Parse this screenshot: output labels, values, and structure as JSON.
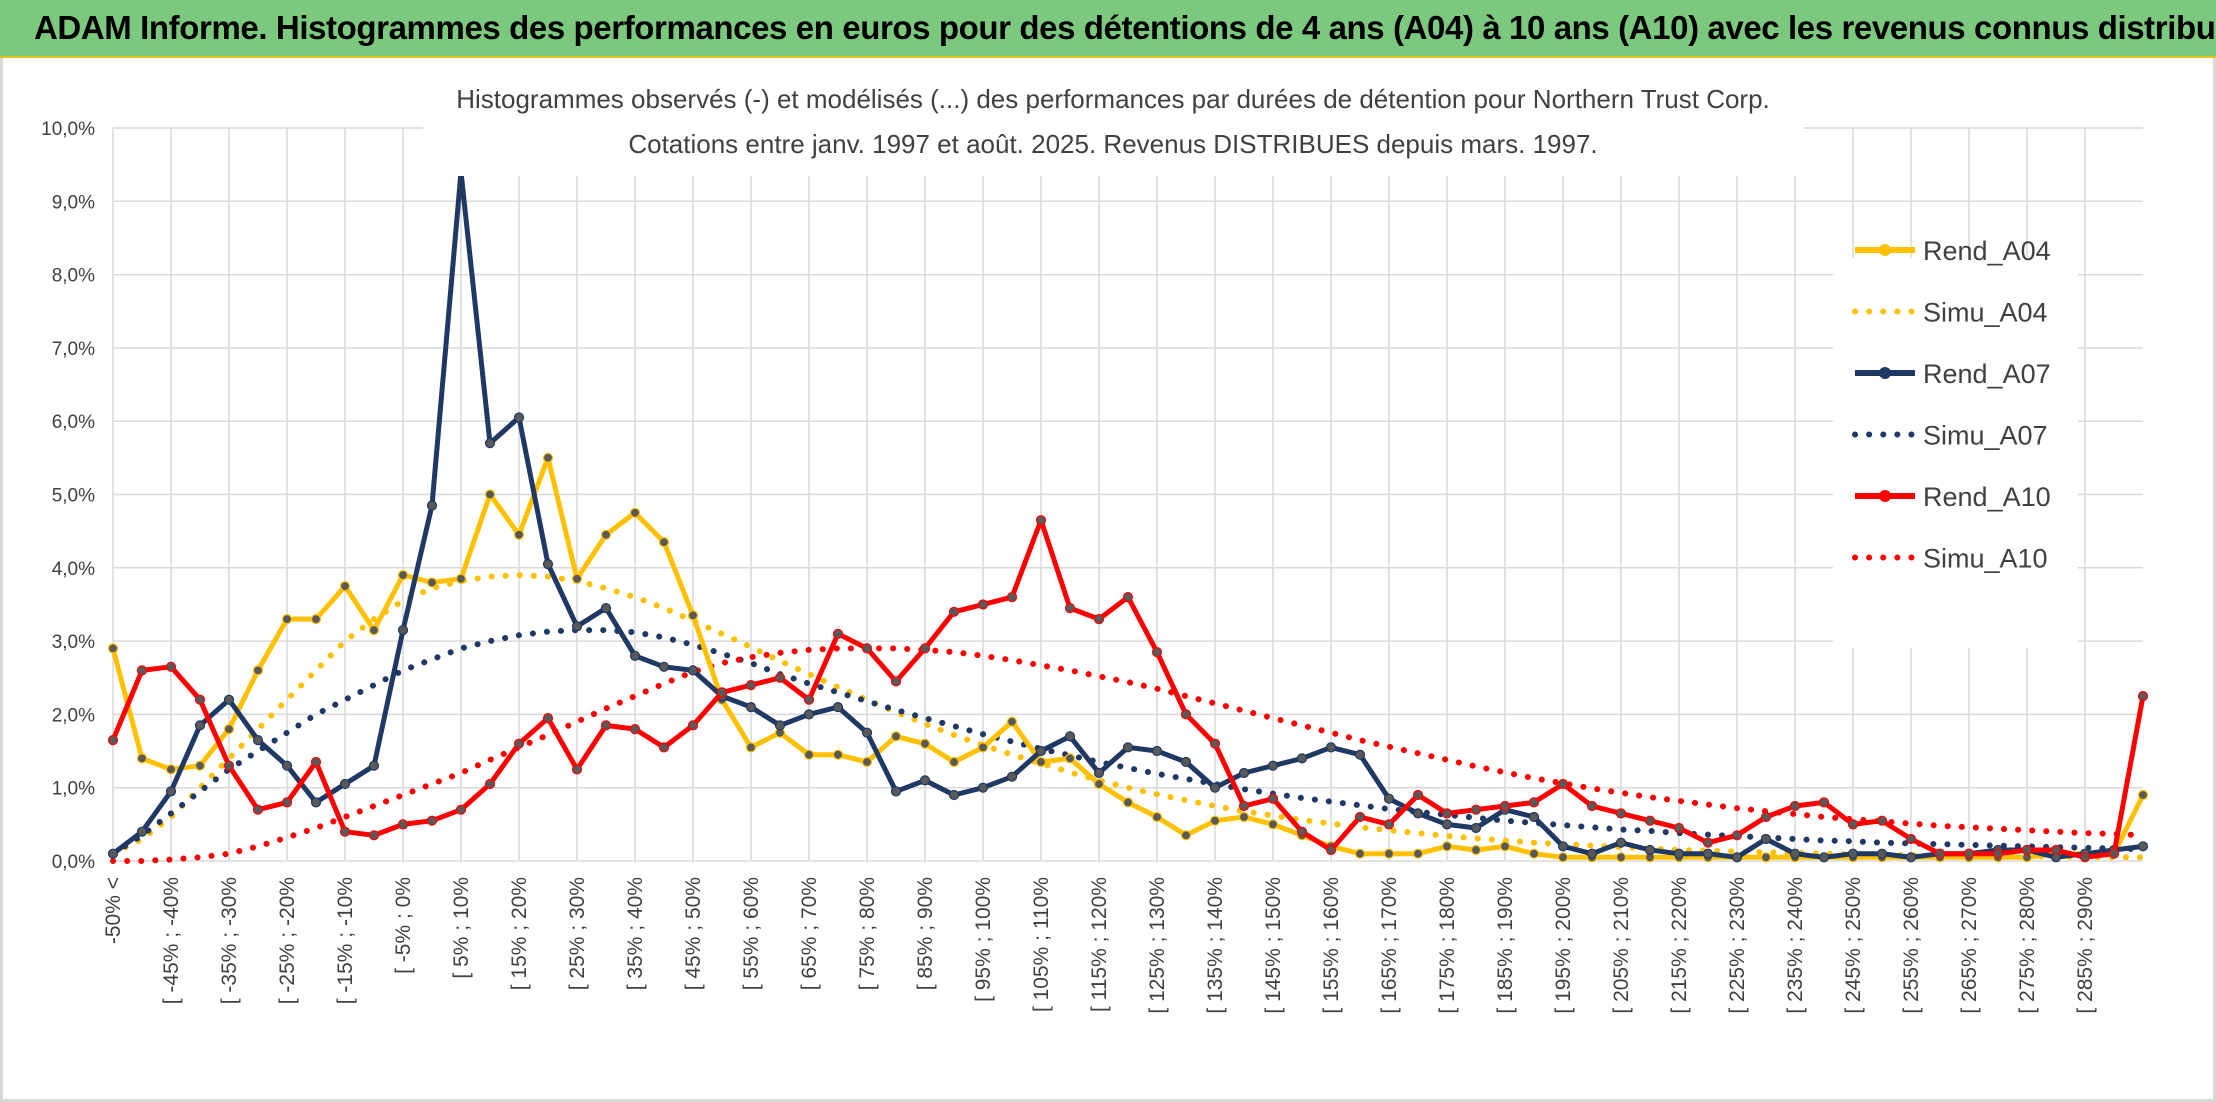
{
  "banner": {
    "title": "ADAM Informe. Histogrammes des performances en euros pour des détentions de 4 ans (A04) à 10 ans (A10) avec les revenus connus distribués"
  },
  "chart_data": {
    "type": "line",
    "title": "Histogrammes observés (-) et modélisés (...) des performances par durées de détention pour Northern Trust Corp.",
    "subtitle": "Cotations entre janv. 1997 et août. 2025. Revenus DISTRIBUES depuis mars. 1997.",
    "xlabel": "",
    "ylabel": "",
    "ylim": [
      0,
      10
    ],
    "y_ticks": [
      "0,0%",
      "1,0%",
      "2,0%",
      "3,0%",
      "4,0%",
      "5,0%",
      "6,0%",
      "7,0%",
      "8,0%",
      "9,0%",
      "10,0%"
    ],
    "grid": true,
    "legend_position": "right",
    "x_tick_labels": [
      "-50% <",
      "[ -45% ; -40%",
      "[ -35% ; -30%",
      "[ -25% ; -20%",
      "[ -15% ; -10%",
      "[ -5% ; 0%",
      "[ 5% ; 10%",
      "[ 15% ; 20%",
      "[ 25% ; 30%",
      "[ 35% ; 40%",
      "[ 45% ; 50%",
      "[ 55% ; 60%",
      "[ 65% ; 70%",
      "[ 75% ; 80%",
      "[ 85% ; 90%",
      "[ 95% ; 100%",
      "[ 105% ; 110%",
      "[ 115% ; 120%",
      "[ 125% ; 130%",
      "[ 135% ; 140%",
      "[ 145% ; 150%",
      "[ 155% ; 160%",
      "[ 165% ; 170%",
      "[ 175% ; 180%",
      "[ 185% ; 190%",
      "[ 195% ; 200%",
      "[ 205% ; 210%",
      "[ 215% ; 220%",
      "[ 225% ; 230%",
      "[ 235% ; 240%",
      "[ 245% ; 250%",
      "[ 255% ; 260%",
      "[ 265% ; 270%",
      "[ 275% ; 280%",
      "[ 285% ; 290%"
    ],
    "bin_count": 71,
    "series": [
      {
        "name": "Rend_A04",
        "color": "#ffc000",
        "style": "solid",
        "markers": true,
        "values": [
          2.9,
          1.4,
          1.25,
          1.3,
          1.8,
          2.6,
          3.3,
          3.3,
          3.75,
          3.15,
          3.9,
          3.8,
          3.85,
          5.0,
          4.45,
          5.5,
          3.85,
          4.45,
          4.75,
          4.35,
          3.35,
          2.2,
          1.55,
          1.75,
          1.45,
          1.45,
          1.35,
          1.7,
          1.6,
          1.35,
          1.55,
          1.9,
          1.35,
          1.4,
          1.05,
          0.8,
          0.6,
          0.35,
          0.55,
          0.6,
          0.5,
          0.35,
          0.2,
          0.1,
          0.1,
          0.1,
          0.2,
          0.15,
          0.2,
          0.1,
          0.05,
          0.05,
          0.05,
          0.05,
          0.05,
          0.05,
          0.05,
          0.05,
          0.05,
          0.05,
          0.05,
          0.05,
          0.05,
          0.05,
          0.05,
          0.05,
          0.05,
          0.1,
          0.1,
          0.1,
          0.9
        ]
      },
      {
        "name": "Simu_A04",
        "color": "#ffc000",
        "style": "dotted",
        "markers": false,
        "values": [
          0.1,
          0.3,
          0.6,
          1.0,
          1.4,
          1.8,
          2.2,
          2.6,
          3.0,
          3.3,
          3.55,
          3.72,
          3.82,
          3.88,
          3.9,
          3.88,
          3.82,
          3.72,
          3.6,
          3.45,
          3.28,
          3.1,
          2.92,
          2.73,
          2.55,
          2.37,
          2.2,
          2.03,
          1.87,
          1.72,
          1.58,
          1.45,
          1.33,
          1.21,
          1.1,
          1.0,
          0.91,
          0.83,
          0.75,
          0.68,
          0.62,
          0.56,
          0.51,
          0.46,
          0.42,
          0.38,
          0.34,
          0.31,
          0.28,
          0.25,
          0.23,
          0.21,
          0.19,
          0.17,
          0.15,
          0.14,
          0.13,
          0.12,
          0.11,
          0.1,
          0.09,
          0.08,
          0.08,
          0.07,
          0.07,
          0.06,
          0.06,
          0.06,
          0.05,
          0.05,
          0.05
        ]
      },
      {
        "name": "Rend_A07",
        "color": "#1f3864",
        "style": "solid",
        "markers": true,
        "values": [
          0.1,
          0.4,
          0.95,
          1.85,
          2.2,
          1.65,
          1.3,
          0.8,
          1.05,
          1.3,
          3.15,
          4.85,
          9.4,
          5.7,
          6.05,
          4.05,
          3.2,
          3.45,
          2.8,
          2.65,
          2.6,
          2.25,
          2.1,
          1.85,
          2.0,
          2.1,
          1.75,
          0.95,
          1.1,
          0.9,
          1.0,
          1.15,
          1.5,
          1.7,
          1.2,
          1.55,
          1.5,
          1.35,
          1.0,
          1.2,
          1.3,
          1.4,
          1.55,
          1.45,
          0.85,
          0.65,
          0.5,
          0.45,
          0.7,
          0.6,
          0.2,
          0.1,
          0.25,
          0.15,
          0.1,
          0.1,
          0.05,
          0.3,
          0.1,
          0.05,
          0.1,
          0.1,
          0.05,
          0.1,
          0.1,
          0.15,
          0.15,
          0.05,
          0.1,
          0.15,
          0.2
        ]
      },
      {
        "name": "Simu_A07",
        "color": "#1f3864",
        "style": "dotted",
        "markers": false,
        "values": [
          0.1,
          0.35,
          0.65,
          0.95,
          1.25,
          1.5,
          1.75,
          2.0,
          2.2,
          2.4,
          2.6,
          2.75,
          2.9,
          3.0,
          3.08,
          3.13,
          3.15,
          3.15,
          3.12,
          3.05,
          2.95,
          2.83,
          2.7,
          2.55,
          2.42,
          2.3,
          2.18,
          2.06,
          1.95,
          1.84,
          1.73,
          1.63,
          1.53,
          1.44,
          1.35,
          1.27,
          1.19,
          1.12,
          1.05,
          0.98,
          0.92,
          0.86,
          0.81,
          0.76,
          0.71,
          0.67,
          0.63,
          0.59,
          0.55,
          0.52,
          0.49,
          0.46,
          0.43,
          0.41,
          0.38,
          0.36,
          0.34,
          0.32,
          0.3,
          0.28,
          0.27,
          0.25,
          0.24,
          0.23,
          0.22,
          0.21,
          0.2,
          0.19,
          0.18,
          0.17,
          0.16
        ]
      },
      {
        "name": "Rend_A10",
        "color": "#ff0000",
        "style": "solid",
        "markers": true,
        "values": [
          1.65,
          2.6,
          2.65,
          2.2,
          1.3,
          0.7,
          0.8,
          1.35,
          0.4,
          0.35,
          0.5,
          0.55,
          0.7,
          1.05,
          1.6,
          1.95,
          1.25,
          1.85,
          1.8,
          1.55,
          1.85,
          2.3,
          2.4,
          2.5,
          2.2,
          3.1,
          2.9,
          2.45,
          2.9,
          3.4,
          3.5,
          3.6,
          4.65,
          3.45,
          3.3,
          3.6,
          2.85,
          2.0,
          1.6,
          0.75,
          0.85,
          0.4,
          0.15,
          0.6,
          0.5,
          0.9,
          0.65,
          0.7,
          0.75,
          0.8,
          1.05,
          0.75,
          0.65,
          0.55,
          0.45,
          0.25,
          0.35,
          0.6,
          0.75,
          0.8,
          0.5,
          0.55,
          0.3,
          0.1,
          0.1,
          0.1,
          0.15,
          0.15,
          0.05,
          0.1,
          2.25
        ]
      },
      {
        "name": "Simu_A10",
        "color": "#ff0000",
        "style": "dotted",
        "markers": false,
        "values": [
          0.0,
          0.0,
          0.02,
          0.05,
          0.1,
          0.2,
          0.32,
          0.45,
          0.6,
          0.75,
          0.9,
          1.05,
          1.2,
          1.38,
          1.55,
          1.72,
          1.9,
          2.08,
          2.25,
          2.42,
          2.58,
          2.7,
          2.78,
          2.84,
          2.88,
          2.9,
          2.9,
          2.9,
          2.88,
          2.85,
          2.8,
          2.74,
          2.67,
          2.6,
          2.52,
          2.44,
          2.35,
          2.25,
          2.15,
          2.05,
          1.95,
          1.85,
          1.75,
          1.65,
          1.56,
          1.47,
          1.38,
          1.29,
          1.21,
          1.13,
          1.06,
          0.99,
          0.93,
          0.87,
          0.82,
          0.77,
          0.72,
          0.68,
          0.64,
          0.6,
          0.57,
          0.54,
          0.51,
          0.48,
          0.46,
          0.44,
          0.42,
          0.4,
          0.38,
          0.37,
          0.35
        ]
      }
    ]
  }
}
